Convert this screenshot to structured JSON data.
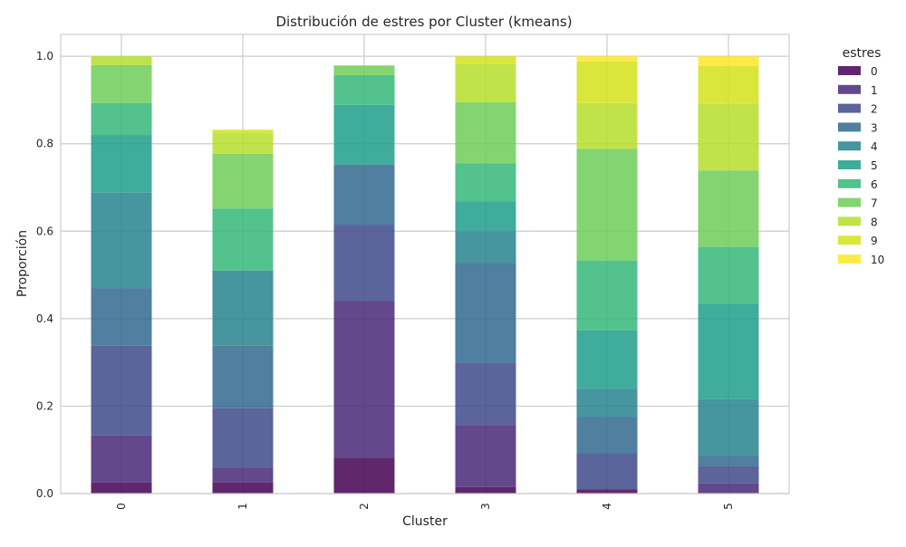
{
  "chart_data": {
    "type": "bar",
    "stacked": true,
    "title": "Distribución de estres por Cluster (kmeans)",
    "xlabel": "Cluster",
    "ylabel": "Proporción",
    "ylim": [
      0,
      1.05
    ],
    "yticks": [
      "0.0",
      "0.2",
      "0.4",
      "0.6",
      "0.8",
      "1.0"
    ],
    "categories": [
      "0",
      "1",
      "2",
      "3",
      "4",
      "5"
    ],
    "grid": true,
    "legend": {
      "title": "estres",
      "placement": "outside-right"
    },
    "series": [
      {
        "name": "0",
        "color": "#440154",
        "values": [
          0.025,
          0.025,
          0.082,
          0.015,
          0.01,
          0.0
        ]
      },
      {
        "name": "1",
        "color": "#482878",
        "values": [
          0.108,
          0.033,
          0.358,
          0.142,
          0.0,
          0.023
        ]
      },
      {
        "name": "2",
        "color": "#3e4989",
        "values": [
          0.205,
          0.137,
          0.175,
          0.142,
          0.083,
          0.04
        ]
      },
      {
        "name": "3",
        "color": "#31688e",
        "values": [
          0.132,
          0.143,
          0.137,
          0.228,
          0.082,
          0.023
        ]
      },
      {
        "name": "4",
        "color": "#26828e",
        "values": [
          0.218,
          0.172,
          0.0,
          0.073,
          0.065,
          0.13
        ]
      },
      {
        "name": "5",
        "color": "#1f9e89",
        "values": [
          0.132,
          0.0,
          0.137,
          0.068,
          0.133,
          0.218
        ]
      },
      {
        "name": "6",
        "color": "#35b779",
        "values": [
          0.073,
          0.142,
          0.068,
          0.087,
          0.16,
          0.13
        ]
      },
      {
        "name": "7",
        "color": "#6ece58",
        "values": [
          0.087,
          0.125,
          0.022,
          0.14,
          0.255,
          0.175
        ]
      },
      {
        "name": "8",
        "color": "#b5de2b",
        "values": [
          0.02,
          0.048,
          0.0,
          0.087,
          0.105,
          0.152
        ]
      },
      {
        "name": "9",
        "color": "#d5e21a",
        "values": [
          0.0,
          0.007,
          0.0,
          0.018,
          0.095,
          0.087
        ]
      },
      {
        "name": "10",
        "color": "#fde725",
        "values": [
          0.0,
          0.0,
          0.0,
          0.0,
          0.012,
          0.022
        ]
      }
    ]
  }
}
